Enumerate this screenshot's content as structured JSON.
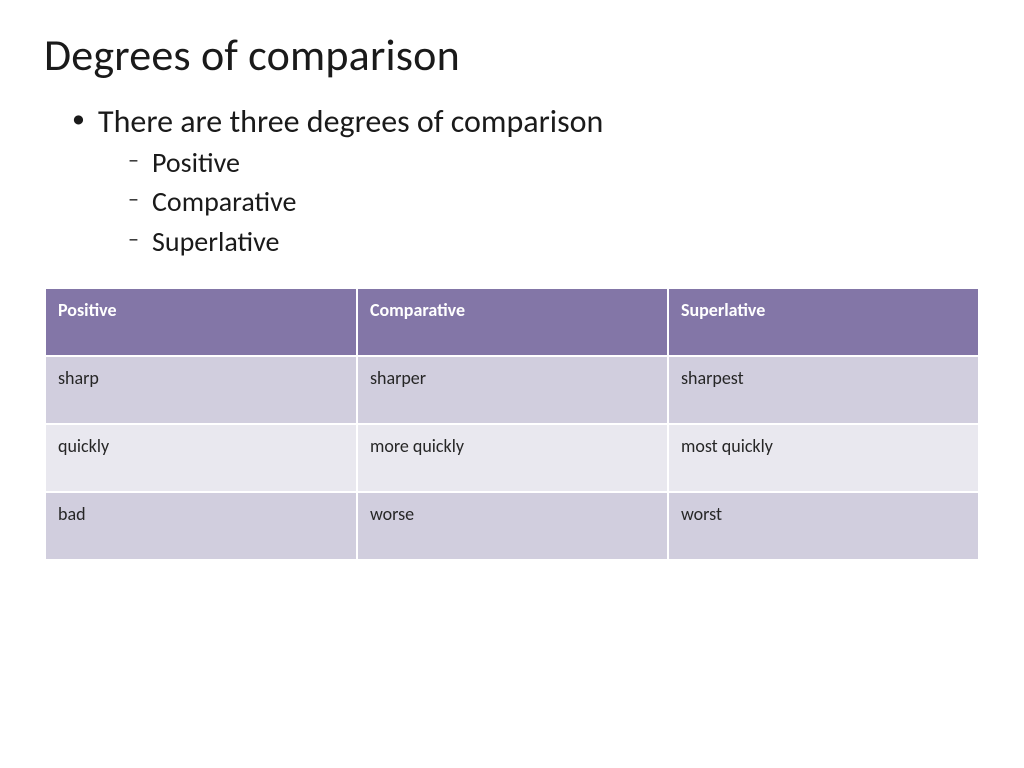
{
  "title": "Degrees of comparison",
  "bullets": {
    "main": "There are three degrees of comparison",
    "sub": [
      "Positive",
      "Comparative",
      "Superlative"
    ]
  },
  "table": {
    "type": "table",
    "columns": [
      "Positive",
      "Comparative",
      "Superlative"
    ],
    "rows": [
      [
        "sharp",
        "sharper",
        "sharpest"
      ],
      [
        "quickly",
        "more quickly",
        "most quickly"
      ],
      [
        "bad",
        "worse",
        "worst"
      ]
    ],
    "header_bg": "#8376a7",
    "header_text_color": "#ffffff",
    "row_bg_odd": "#d1cede",
    "row_bg_even": "#e9e8ef",
    "cell_border_color": "#ffffff",
    "header_fontsize": 18,
    "cell_fontsize": 18,
    "col_widths_pct": [
      33.4,
      33.3,
      33.3
    ]
  },
  "background_color": "#ffffff",
  "title_fontsize": 44,
  "body_fontsize": 32,
  "sub_fontsize": 28,
  "text_color": "#1a1a1a"
}
